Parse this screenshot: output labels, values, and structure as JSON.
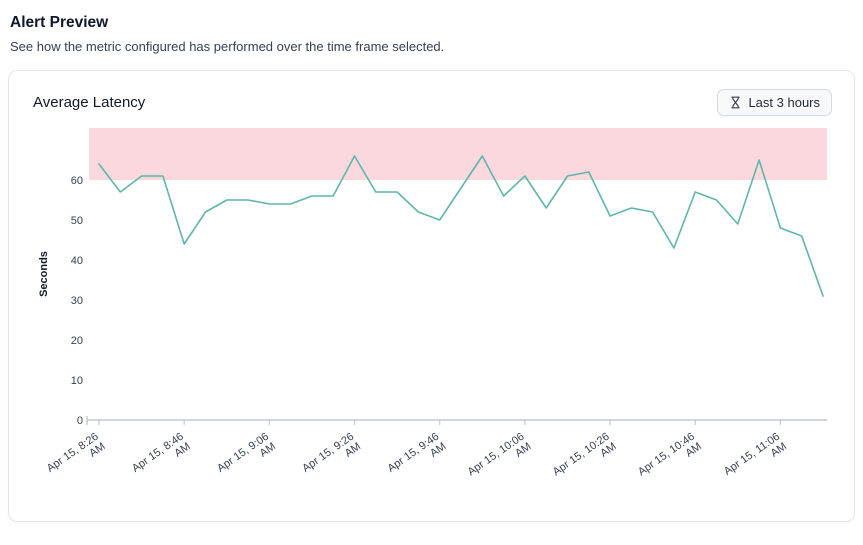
{
  "header": {
    "title": "Alert Preview",
    "subtitle": "See how the metric configured has performed over the time frame selected."
  },
  "card": {
    "title": "Average Latency",
    "time_range_label": "Last 3 hours",
    "time_range_icon": "hourglass-icon"
  },
  "chart_data": {
    "type": "line",
    "title": "Average Latency",
    "xlabel": "",
    "ylabel": "Seconds",
    "ylim": [
      0,
      73
    ],
    "yticks": [
      0,
      10,
      20,
      30,
      40,
      50,
      60
    ],
    "grid": false,
    "legend": "none",
    "line_color": "#5fb6aa",
    "threshold_band": {
      "from": 60,
      "to": 73,
      "color": "#fbd8dd"
    },
    "axis_color": "#c4c9cf",
    "tick_text_color": "#374151",
    "x_tick_indices": [
      0,
      4,
      8,
      12,
      16,
      20,
      24,
      28,
      32
    ],
    "x_tick_labels": [
      "Apr 15, 8:26 AM",
      "Apr 15, 8:46 AM",
      "Apr 15, 9:06 AM",
      "Apr 15, 9:26 AM",
      "Apr 15, 9:46 AM",
      "Apr 15, 10:06 AM",
      "Apr 15, 10:26 AM",
      "Apr 15, 10:46 AM",
      "Apr 15, 11:06 AM"
    ],
    "values": [
      64,
      57,
      61,
      61,
      44,
      52,
      55,
      55,
      54,
      54,
      56,
      56,
      66,
      57,
      57,
      52,
      50,
      58,
      66,
      56,
      61,
      53,
      61,
      62,
      51,
      53,
      52,
      43,
      57,
      55,
      49,
      65,
      48,
      46,
      31
    ]
  }
}
